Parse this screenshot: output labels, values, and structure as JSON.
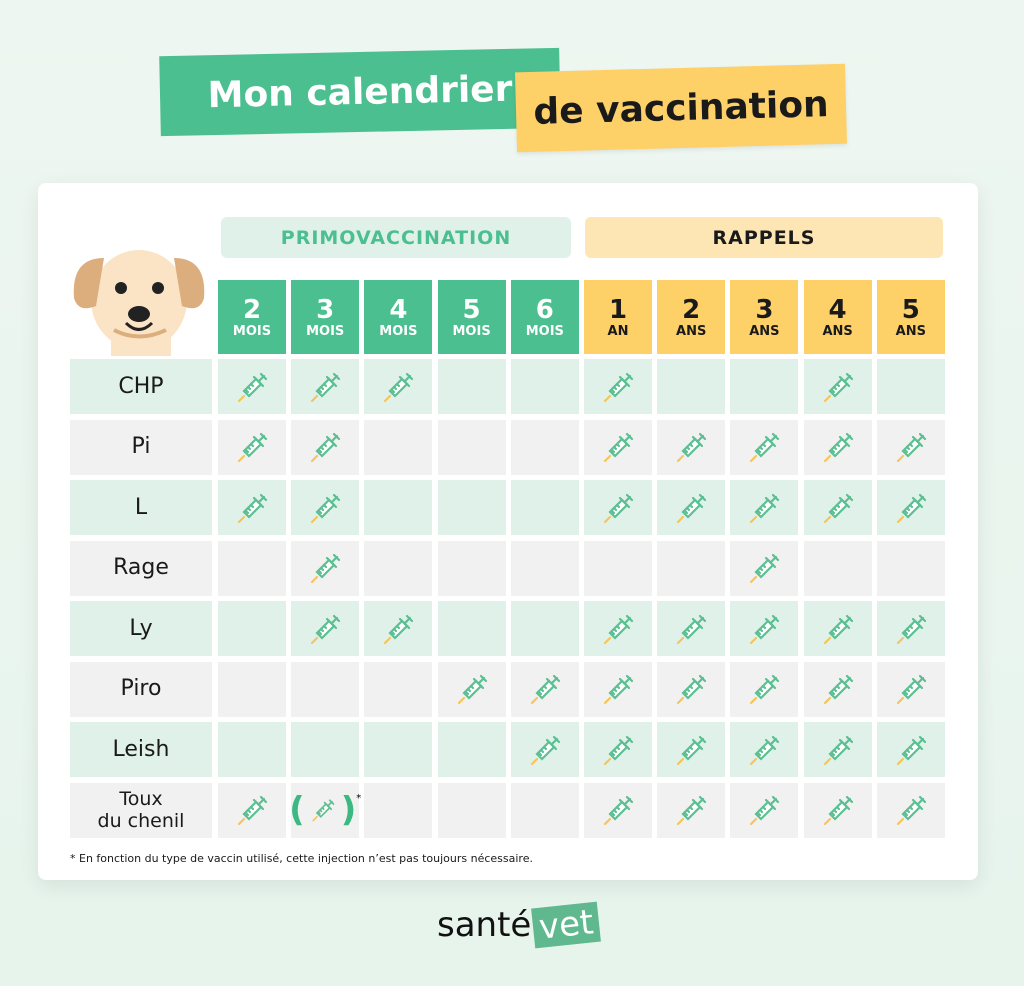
{
  "title": {
    "line1": "Mon calendrier",
    "line2": "de vaccination"
  },
  "sections": {
    "primo": "PRIMOVACCINATION",
    "rappels": "RAPPELS"
  },
  "columns": [
    {
      "n": "2",
      "u": "MOIS",
      "group": "primo"
    },
    {
      "n": "3",
      "u": "MOIS",
      "group": "primo"
    },
    {
      "n": "4",
      "u": "MOIS",
      "group": "primo"
    },
    {
      "n": "5",
      "u": "MOIS",
      "group": "primo"
    },
    {
      "n": "6",
      "u": "MOIS",
      "group": "primo"
    },
    {
      "n": "1",
      "u": "AN",
      "group": "rappels"
    },
    {
      "n": "2",
      "u": "ANS",
      "group": "rappels"
    },
    {
      "n": "3",
      "u": "ANS",
      "group": "rappels"
    },
    {
      "n": "4",
      "u": "ANS",
      "group": "rappels"
    },
    {
      "n": "5",
      "u": "ANS",
      "group": "rappels"
    }
  ],
  "rows": [
    {
      "label": "CHP",
      "cells": [
        1,
        1,
        1,
        0,
        0,
        1,
        0,
        0,
        1,
        0
      ]
    },
    {
      "label": "Pi",
      "cells": [
        1,
        1,
        0,
        0,
        0,
        1,
        1,
        1,
        1,
        1
      ]
    },
    {
      "label": "L",
      "cells": [
        1,
        1,
        0,
        0,
        0,
        1,
        1,
        1,
        1,
        1
      ]
    },
    {
      "label": "Rage",
      "cells": [
        0,
        1,
        0,
        0,
        0,
        0,
        0,
        1,
        0,
        0
      ]
    },
    {
      "label": "Ly",
      "cells": [
        0,
        1,
        1,
        0,
        0,
        1,
        1,
        1,
        1,
        1
      ]
    },
    {
      "label": "Piro",
      "cells": [
        0,
        0,
        0,
        1,
        1,
        1,
        1,
        1,
        1,
        1
      ]
    },
    {
      "label": "Leish",
      "cells": [
        0,
        0,
        0,
        0,
        1,
        1,
        1,
        1,
        1,
        1
      ]
    },
    {
      "label": "Toux du chenil",
      "label_lines": [
        "Toux",
        "du chenil"
      ],
      "cells": [
        1,
        "optional",
        0,
        0,
        0,
        1,
        1,
        1,
        1,
        1
      ]
    }
  ],
  "optional_mark": "*",
  "footnote": "* En fonction du type de vaccin utilisé, cette injection n’est pas toujours nécessaire.",
  "logo": {
    "text1": "santé",
    "text2": "vet"
  },
  "colors": {
    "green": "#4bbf8f",
    "yellow": "#fdd068",
    "row_green": "#e0f1ea",
    "row_grey": "#f1f1f1",
    "primo_bg": "#e0f1ea",
    "rappels_bg": "#fde6b3"
  },
  "icons": {
    "cell": "syringe-icon",
    "mascot": "dog-icon"
  }
}
